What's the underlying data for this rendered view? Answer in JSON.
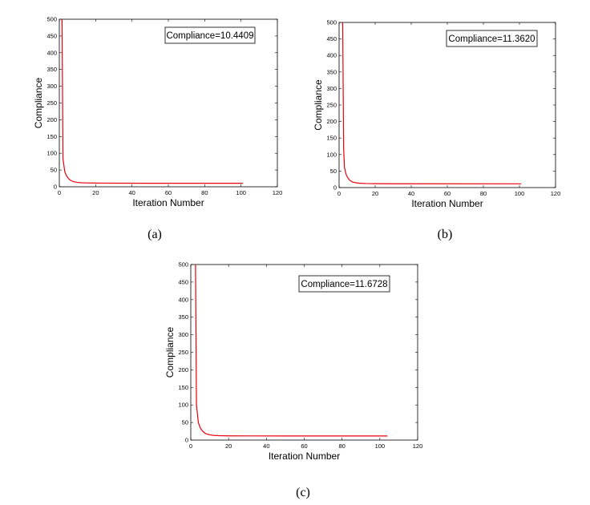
{
  "chart_data": [
    {
      "type": "line",
      "caption": "(a)",
      "xlabel": "Iteration Number",
      "ylabel": "Compliance",
      "xlim": [
        0,
        120
      ],
      "ylim": [
        0,
        500
      ],
      "xticks": [
        "0",
        "20",
        "40",
        "60",
        "80",
        "100",
        "120"
      ],
      "yticks": [
        "0",
        "50",
        "100",
        "150",
        "200",
        "250",
        "300",
        "350",
        "400",
        "450",
        "500"
      ],
      "annotation": "Compliance=10.4409",
      "grid": false,
      "line_color": "#e8000b",
      "series": [
        {
          "x": [
            1.5,
            2,
            3,
            4,
            5,
            6,
            7,
            8,
            10,
            12,
            15,
            20,
            30,
            50,
            101
          ],
          "y": [
            500,
            85,
            45,
            32,
            25,
            20,
            17,
            15,
            13,
            12,
            11.5,
            11,
            10.7,
            10.5,
            10.44
          ]
        }
      ]
    },
    {
      "type": "line",
      "caption": "(b)",
      "xlabel": "Iteration Number",
      "ylabel": "Compliance",
      "xlim": [
        0,
        120
      ],
      "ylim": [
        0,
        500
      ],
      "xticks": [
        "0",
        "20",
        "40",
        "60",
        "80",
        "100",
        "120"
      ],
      "yticks": [
        "0",
        "50",
        "100",
        "150",
        "200",
        "250",
        "300",
        "350",
        "400",
        "450",
        "500"
      ],
      "annotation": "Compliance=11.3620",
      "grid": false,
      "line_color": "#e8000b",
      "series": [
        {
          "x": [
            2,
            2.5,
            3,
            4,
            5,
            6,
            7,
            8,
            10,
            12,
            15,
            20,
            30,
            50,
            101
          ],
          "y": [
            500,
            120,
            60,
            38,
            28,
            22,
            18,
            16,
            14,
            13,
            12.3,
            11.8,
            11.6,
            11.45,
            11.36
          ]
        }
      ]
    },
    {
      "type": "line",
      "caption": "(c)",
      "xlabel": "Iteration Number",
      "ylabel": "Compliance",
      "xlim": [
        0,
        120
      ],
      "ylim": [
        0,
        500
      ],
      "xticks": [
        "0",
        "20",
        "40",
        "60",
        "80",
        "100",
        "120"
      ],
      "yticks": [
        "0",
        "50",
        "100",
        "150",
        "200",
        "250",
        "300",
        "350",
        "400",
        "450",
        "500"
      ],
      "annotation": "Compliance=11.6728",
      "grid": false,
      "line_color": "#e8000b",
      "series": [
        {
          "x": [
            2.5,
            3,
            4,
            5,
            6,
            7,
            8,
            10,
            12,
            15,
            20,
            30,
            50,
            104
          ],
          "y": [
            500,
            100,
            50,
            35,
            27,
            22,
            18,
            15,
            13.5,
            12.5,
            12,
            11.8,
            11.7,
            11.67
          ]
        }
      ]
    }
  ]
}
